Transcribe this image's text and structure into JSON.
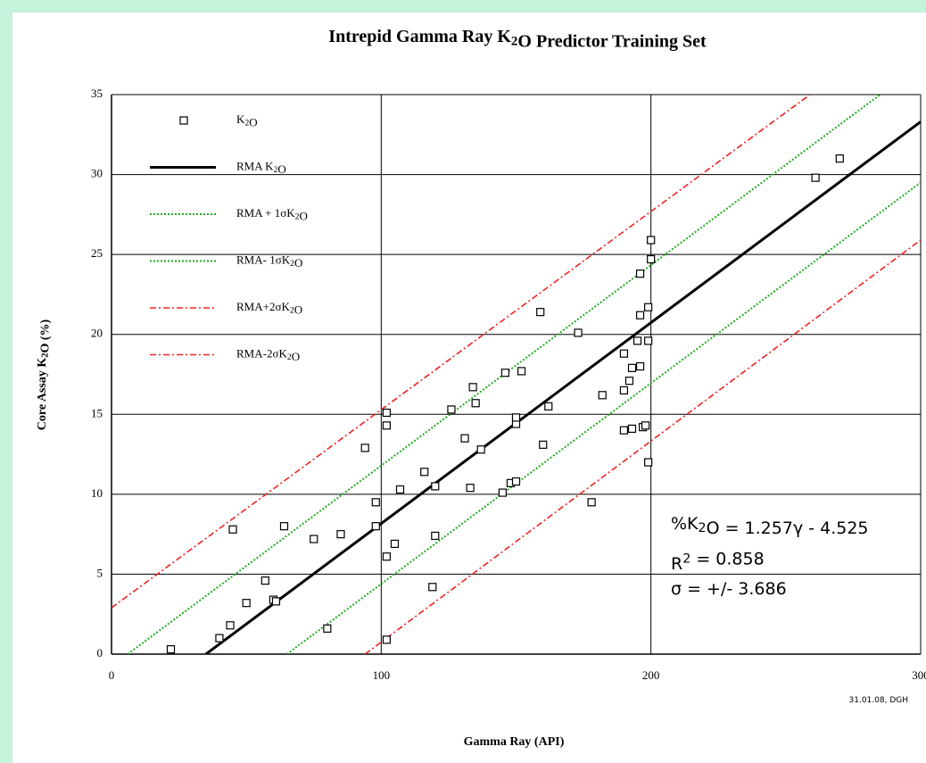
{
  "chart_data": {
    "type": "scatter",
    "title": "Intrepid Gamma Ray K2O Predictor Training Set",
    "x_label": "Gamma Ray (API)",
    "y_label": "Core Assay K2O (%)",
    "xlim": [
      0,
      300
    ],
    "ylim": [
      0,
      35
    ],
    "xticks": [
      0,
      100,
      200,
      300
    ],
    "yticks": [
      0,
      5,
      10,
      15,
      20,
      25,
      30,
      35
    ],
    "grid": true,
    "legend": "upper left",
    "annotations": [
      "%K2O = 1.257γ - 4.525",
      "R2 = 0.858",
      "σ = +/- 3.686"
    ],
    "footnote": "31.01.08, DGH",
    "series": [
      {
        "name": "K2O",
        "color": "#000000",
        "mode": "markers",
        "x": [
          22,
          40,
          44,
          45,
          50,
          57,
          60,
          61,
          64,
          75,
          80,
          85,
          94,
          98,
          98,
          102,
          102,
          102,
          102,
          105,
          107,
          116,
          119,
          120,
          120,
          126,
          131,
          133,
          134,
          135,
          137,
          145,
          146,
          148,
          150,
          150,
          150,
          152,
          159,
          160,
          162,
          173,
          178,
          182,
          190,
          190,
          190,
          192,
          193,
          193,
          195,
          196,
          196,
          196,
          197,
          198,
          199,
          199,
          199,
          200,
          200,
          261,
          270
        ],
        "values": [
          0.3,
          1.0,
          1.8,
          7.8,
          3.2,
          4.6,
          3.4,
          3.3,
          8.0,
          7.2,
          1.6,
          7.5,
          12.9,
          8.0,
          9.5,
          6.1,
          0.9,
          14.3,
          15.1,
          6.9,
          10.3,
          11.4,
          4.2,
          7.4,
          10.5,
          15.3,
          13.5,
          10.4,
          16.7,
          15.7,
          12.8,
          10.1,
          17.6,
          10.7,
          10.8,
          14.4,
          14.8,
          17.7,
          21.4,
          13.1,
          15.5,
          20.1,
          9.5,
          16.2,
          18.8,
          14.0,
          16.5,
          17.1,
          17.9,
          14.1,
          19.6,
          18.0,
          21.2,
          23.8,
          14.2,
          14.3,
          19.6,
          21.7,
          12.0,
          24.7,
          25.9,
          29.8,
          31.0
        ]
      },
      {
        "name": "RMA K2O",
        "color": "#000000",
        "mode": "line",
        "dash": "solid",
        "x": [
          35,
          300
        ],
        "values": [
          0,
          33.3
        ]
      },
      {
        "name": "RMA + 1σK2O",
        "color": "#22aa22",
        "mode": "line",
        "dash": "dotted",
        "x": [
          6,
          285
        ],
        "values": [
          0,
          35
        ]
      },
      {
        "name": "RMA- 1σK2O",
        "color": "#22aa22",
        "mode": "line",
        "dash": "dotted",
        "x": [
          65,
          300
        ],
        "values": [
          0,
          29.5
        ]
      },
      {
        "name": "RMA+2σK2O",
        "color": "#ee2222",
        "mode": "line",
        "dash": "dashdot",
        "x": [
          0,
          259
        ],
        "values": [
          2.9,
          35
        ]
      },
      {
        "name": "RMA-2σK2O",
        "color": "#ee2222",
        "mode": "line",
        "dash": "dashdot",
        "x": [
          94,
          300
        ],
        "values": [
          0,
          25.9
        ]
      }
    ]
  }
}
